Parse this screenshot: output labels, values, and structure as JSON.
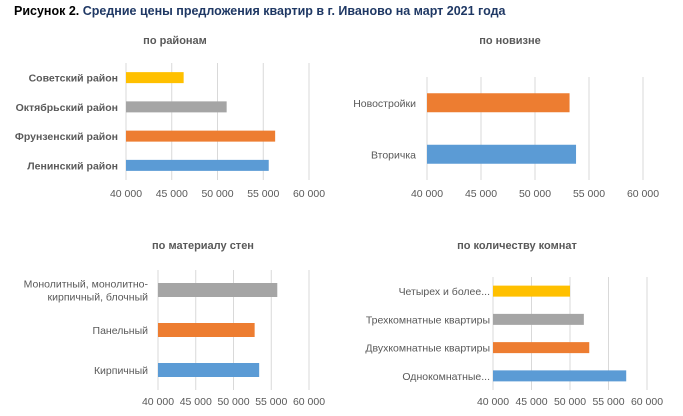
{
  "figure": {
    "title_lead": "Рисунок 2.",
    "title_rest": "Средние цены предложения квартир в г. Иваново на март 2021 года"
  },
  "colors": {
    "yellow": "#ffc000",
    "gray": "#a5a5a5",
    "orange": "#ed7d31",
    "blue": "#5b9bd5",
    "grid": "#d9d9d9",
    "label": "#595959"
  },
  "chart_data": [
    {
      "type": "bar",
      "orientation": "horizontal",
      "title": "по районам",
      "categories": [
        "Советский район",
        "Октябрьский район",
        "Фрунзенский район",
        "Ленинский район"
      ],
      "values": [
        46300,
        51000,
        56300,
        55600
      ],
      "bar_colors": [
        "yellow",
        "gray",
        "orange",
        "blue"
      ],
      "label_bold": true,
      "xlim": [
        40000,
        60000
      ],
      "xticks": [
        "40 000",
        "45 000",
        "50 000",
        "55 000",
        "60 000"
      ],
      "grid": true,
      "legend": "none"
    },
    {
      "type": "bar",
      "orientation": "horizontal",
      "title": "по новизне",
      "categories": [
        "Новостройки",
        "Вторичка"
      ],
      "values": [
        53200,
        53800
      ],
      "bar_colors": [
        "orange",
        "blue"
      ],
      "label_bold": false,
      "xlim": [
        40000,
        60000
      ],
      "xticks": [
        "40 000",
        "45 000",
        "50 000",
        "55 000",
        "60 000"
      ],
      "grid": true,
      "legend": "none"
    },
    {
      "type": "bar",
      "orientation": "horizontal",
      "title": "по материалу стен",
      "categories": [
        "Монолитный, монолитно-кирпичный, блочный",
        "Панельный",
        "Кирпичный"
      ],
      "category_lines": [
        [
          "Монолитный, монолитно-",
          "кирпичный, блочный"
        ],
        [
          "Панельный"
        ],
        [
          "Кирпичный"
        ]
      ],
      "values": [
        55800,
        52800,
        53400
      ],
      "bar_colors": [
        "gray",
        "orange",
        "blue"
      ],
      "label_bold": false,
      "xlim": [
        40000,
        60000
      ],
      "xticks": [
        "40 000",
        "45 000",
        "50 000",
        "55 000",
        "60 000"
      ],
      "grid": true,
      "legend": "none"
    },
    {
      "type": "bar",
      "orientation": "horizontal",
      "title": "по количеству комнат",
      "categories": [
        "Четырех и более...",
        "Трехкомнатные квартиры",
        "Двухкомнатные квартиры",
        "Однокомнатные..."
      ],
      "values": [
        50000,
        51800,
        52500,
        57300
      ],
      "bar_colors": [
        "yellow",
        "gray",
        "orange",
        "blue"
      ],
      "label_bold": false,
      "xlim": [
        40000,
        60000
      ],
      "xticks": [
        "40 000",
        "45 000",
        "50 000",
        "55 000",
        "60 000"
      ],
      "grid": true,
      "legend": "none"
    }
  ]
}
